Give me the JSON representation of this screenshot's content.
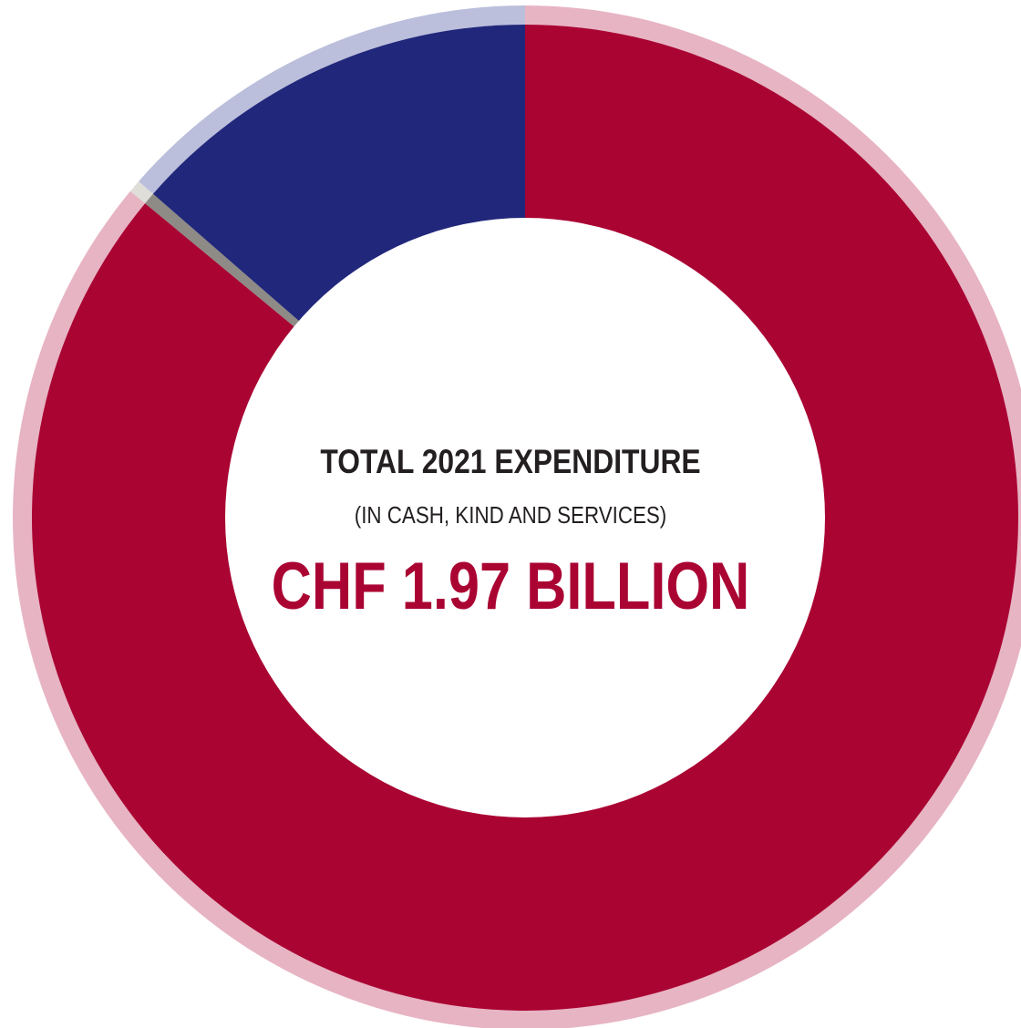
{
  "chart_data": {
    "type": "pie",
    "style": "donut",
    "center": {
      "heading": "TOTAL 2021 EXPENDITURE",
      "subheading": "(IN CASH, KIND AND SERVICES)",
      "total": "CHF 1.97 BILLION"
    },
    "slices": [
      {
        "value": 86.0,
        "color": "#aa0433",
        "outer_color": "#e7b4c3"
      },
      {
        "value": 0.4,
        "color": "#8e8a86",
        "outer_color": "#e0ded9"
      },
      {
        "value": 13.6,
        "color": "#21277b",
        "outer_color": "#bbbfdb"
      }
    ],
    "start": "top",
    "direction": "clockwise",
    "colors": {
      "heading": "#231f20",
      "total": "#aa0433"
    }
  }
}
